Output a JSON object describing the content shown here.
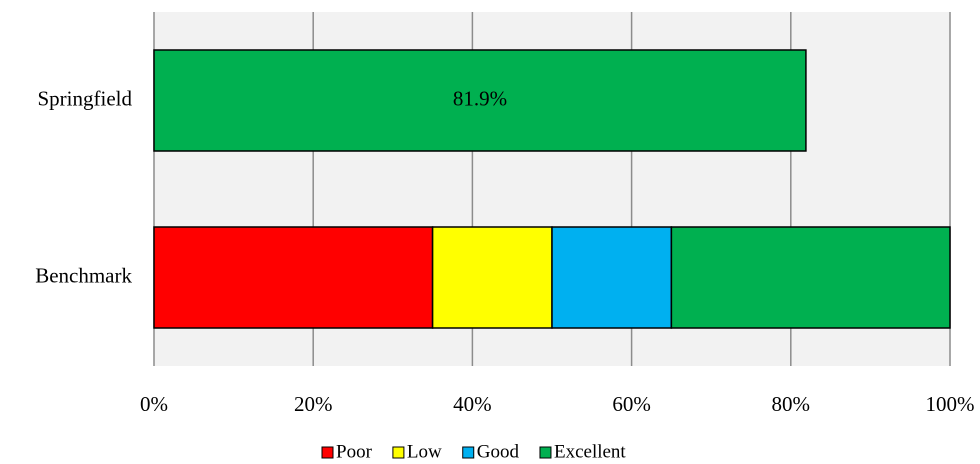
{
  "chart_data": {
    "type": "stacked-bar-horizontal",
    "categories": [
      "Springfield",
      "Benchmark"
    ],
    "series": [
      {
        "name": "Poor",
        "color": "#ff0000",
        "values": [
          null,
          35
        ]
      },
      {
        "name": "Low",
        "color": "#ffff00",
        "values": [
          null,
          15
        ]
      },
      {
        "name": "Good",
        "color": "#00b0f0",
        "values": [
          null,
          15
        ]
      },
      {
        "name": "Excellent",
        "color": "#00b050",
        "values": [
          81.9,
          35
        ],
        "value_labels": [
          "81.9%",
          null
        ]
      }
    ],
    "xlim": [
      0,
      100
    ],
    "xticks": [
      {
        "value": 0,
        "label": "0%"
      },
      {
        "value": 20,
        "label": "20%"
      },
      {
        "value": 40,
        "label": "40%"
      },
      {
        "value": 60,
        "label": "60%"
      },
      {
        "value": 80,
        "label": "80%"
      },
      {
        "value": 100,
        "label": "100%"
      }
    ],
    "grid": true,
    "legend": "bottom"
  }
}
